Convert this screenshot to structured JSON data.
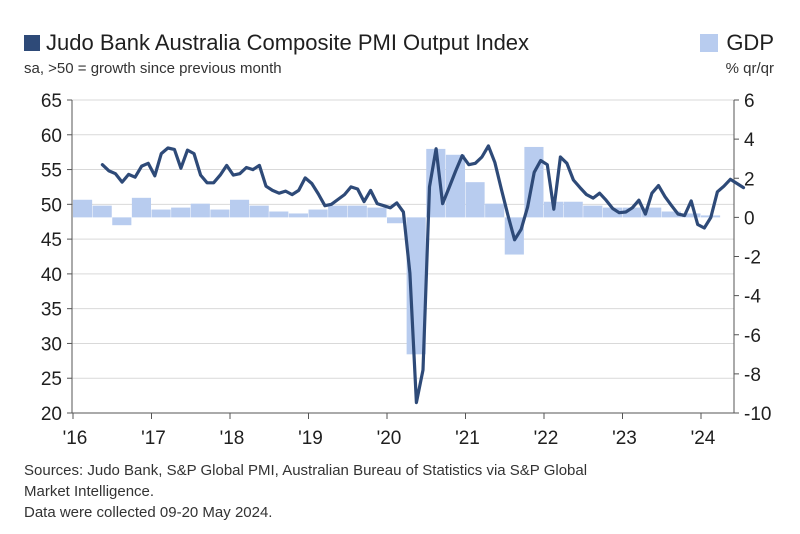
{
  "title": "Judo Bank Australia Composite PMI Output Index",
  "subtitle": "sa, >50 = growth since previous month",
  "legend_gdp": "GDP",
  "gdp_unit": "% qr/qr",
  "footer": {
    "line1": "Sources: Judo Bank, S&P Global PMI, Australian Bureau of Statistics via S&P Global",
    "line2": "Market Intelligence.",
    "line3": "Data were collected 09-20 May 2024."
  },
  "colors": {
    "pmi_line": "#2e4a78",
    "gdp_bar": "#b8ccef",
    "axis": "#555555"
  },
  "chart_data": {
    "type": "line",
    "title": "Judo Bank Australia Composite PMI Output Index",
    "x_ticks": [
      "'16",
      "'17",
      "'18",
      "'19",
      "'20",
      "'21",
      "'22",
      "'23",
      "'24"
    ],
    "y_left": {
      "min": 20,
      "max": 65,
      "ticks": [
        20,
        25,
        30,
        35,
        40,
        45,
        50,
        55,
        60,
        65
      ]
    },
    "y_right": {
      "min": -10,
      "max": 6,
      "ticks": [
        "-10",
        "-8",
        "-6",
        "-4",
        "-2",
        "0",
        "2",
        "4",
        "6"
      ]
    },
    "series": [
      {
        "name": "Judo Bank Australia Composite PMI Output Index",
        "axis": "left",
        "start": "2016-05",
        "values": [
          55.7,
          54.8,
          54.4,
          53.2,
          54.3,
          53.9,
          55.5,
          55.9,
          54.1,
          57.3,
          58.1,
          57.9,
          55.2,
          57.8,
          57.3,
          54.2,
          53.1,
          53.1,
          54.2,
          55.6,
          54.2,
          54.4,
          55.3,
          55.0,
          55.6,
          52.6,
          52.0,
          51.6,
          51.9,
          51.4,
          52.0,
          53.8,
          53.0,
          51.5,
          49.8,
          50.0,
          50.7,
          51.4,
          52.5,
          52.2,
          50.4,
          52.0,
          50.1,
          49.8,
          49.5,
          50.2,
          48.9,
          40.1,
          21.5,
          26.2,
          52.5,
          58.0,
          50.1,
          52.4,
          54.8,
          57.0,
          55.7,
          55.9,
          56.8,
          58.4,
          56.0,
          52.1,
          48.4,
          44.9,
          46.4,
          49.6,
          54.6,
          56.3,
          55.7,
          49.3,
          56.8,
          55.9,
          53.5,
          52.4,
          51.4,
          50.9,
          51.6,
          50.6,
          49.4,
          48.8,
          48.9,
          49.5,
          50.6,
          48.6,
          51.6,
          52.7,
          51.1,
          49.8,
          48.6,
          48.4,
          50.5,
          47.1,
          46.6,
          48.1,
          51.8,
          52.6,
          53.6,
          53.0,
          52.4
        ]
      },
      {
        "name": "GDP",
        "axis": "right",
        "type": "bar",
        "quarters": [
          "2016Q1",
          "2016Q2",
          "2016Q3",
          "2016Q4",
          "2017Q1",
          "2017Q2",
          "2017Q3",
          "2017Q4",
          "2018Q1",
          "2018Q2",
          "2018Q3",
          "2018Q4",
          "2019Q1",
          "2019Q2",
          "2019Q3",
          "2019Q4",
          "2020Q1",
          "2020Q2",
          "2020Q3",
          "2020Q4",
          "2021Q1",
          "2021Q2",
          "2021Q3",
          "2021Q4",
          "2022Q1",
          "2022Q2",
          "2022Q3",
          "2022Q4",
          "2023Q1",
          "2023Q2",
          "2023Q3",
          "2023Q4",
          "2024Q1"
        ],
        "values": [
          0.9,
          0.6,
          -0.4,
          1.0,
          0.4,
          0.5,
          0.7,
          0.4,
          0.9,
          0.6,
          0.3,
          0.2,
          0.4,
          0.6,
          0.6,
          0.5,
          -0.3,
          -7.0,
          3.5,
          3.2,
          1.8,
          0.7,
          -1.9,
          3.6,
          0.8,
          0.8,
          0.6,
          0.5,
          0.5,
          0.5,
          0.3,
          0.2,
          0.1
        ]
      }
    ],
    "grid": "horizontal"
  }
}
